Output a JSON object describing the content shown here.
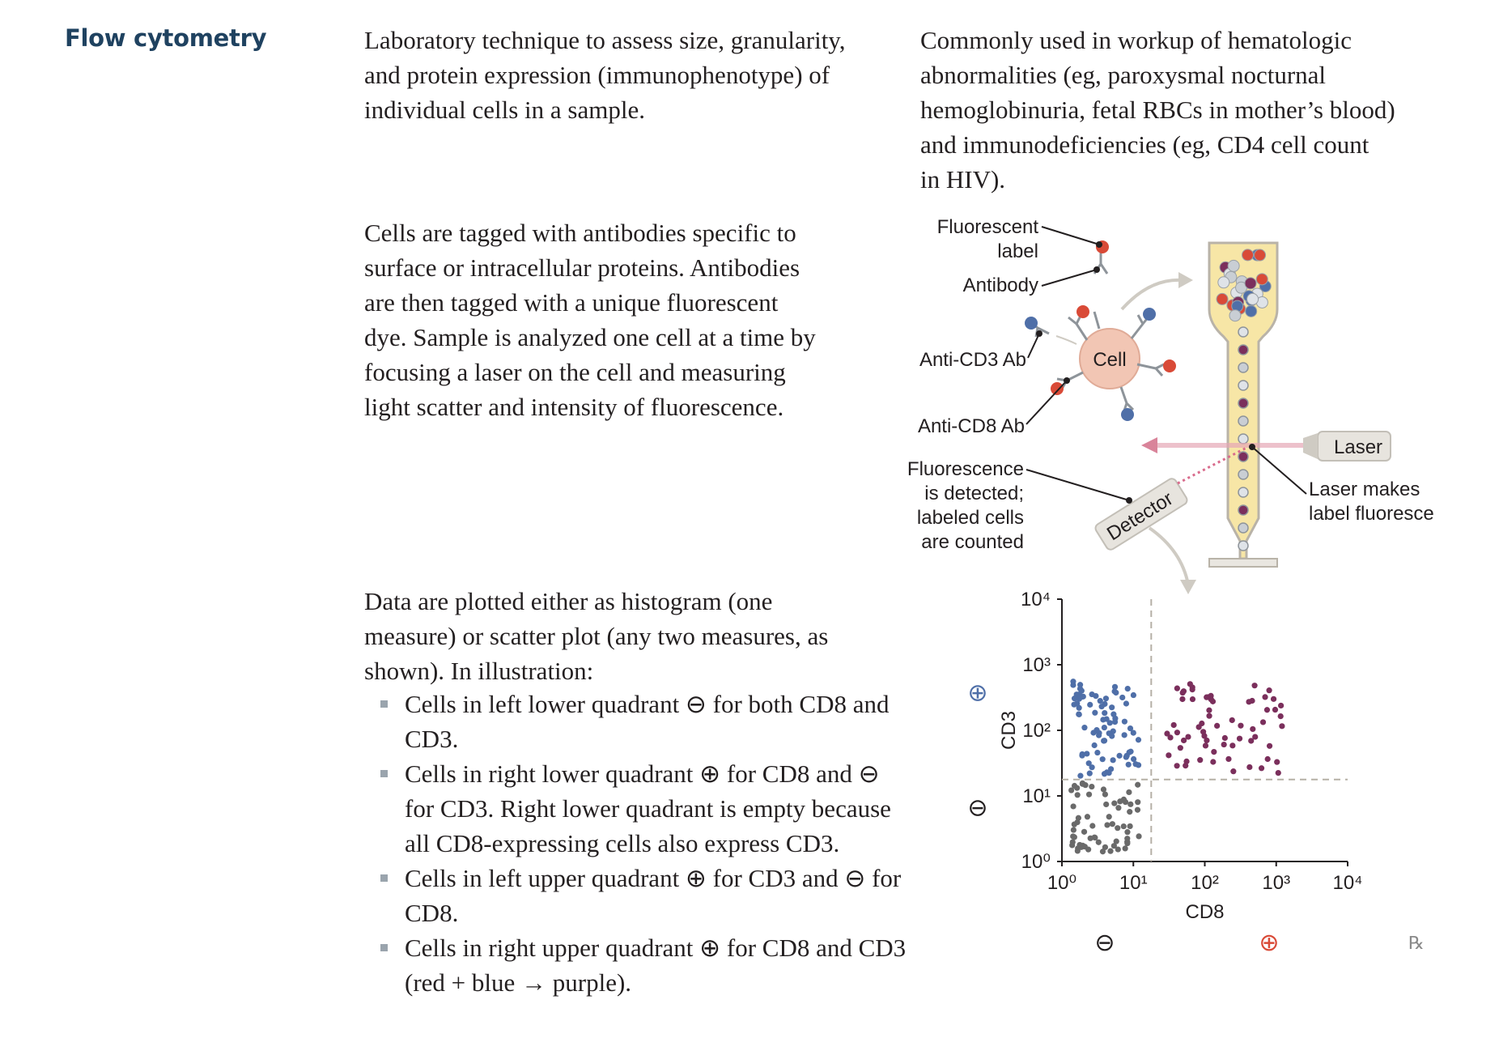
{
  "heading": "Flow cytometry",
  "intro": {
    "left": [
      "Laboratory technique to assess size, granularity,",
      "and protein expression (immunophenotype) of",
      "individual cells in a sample."
    ],
    "right": [
      "Commonly used in workup of hematologic",
      "abnormalities (eg, paroxysmal nocturnal",
      "hemoglobinuria, fetal RBCs in mother’s blood)",
      "and immunodeficiencies (eg, CD4 cell count",
      "in HIV)."
    ]
  },
  "method": [
    "Cells are tagged with antibodies specific to",
    "surface or intracellular proteins. Antibodies",
    "are then tagged with a unique fluorescent",
    "dye. Sample is analyzed one cell at a time by",
    "focusing a laser on the cell and measuring",
    "light scatter and intensity of fluorescence."
  ],
  "plotting": [
    "Data are plotted either as histogram (one",
    "measure) or scatter plot (any two measures, as",
    "shown). In illustration:"
  ],
  "bullets": [
    "Cells in left lower quadrant ⊖ for both CD8 and CD3.",
    "Cells in right lower quadrant ⊕ for CD8 and ⊖ for CD3. Right lower quadrant is empty because all CD8-expressing cells also express CD3.",
    "Cells in left upper quadrant ⊕ for CD3 and ⊖ for CD8.",
    "Cells in right upper quadrant ⊕ for CD8 and CD3 (red + blue → purple)."
  ],
  "diagram": {
    "fluorescent_label": [
      "Fluorescent",
      "label"
    ],
    "antibody": "Antibody",
    "cell": "Cell",
    "anti_cd3": "Anti-CD3 Ab",
    "anti_cd8": "Anti-CD8 Ab",
    "laser": "Laser",
    "laser_note": [
      "Laser makes",
      "label fluoresce"
    ],
    "fluor_note": [
      "Fluorescence",
      "is detected;",
      "labeled cells",
      "are counted"
    ],
    "detector": "Detector",
    "colors": {
      "red": "#d94a37",
      "blue": "#4f6fa8",
      "purple": "#7b2f5c",
      "gray": "#666666",
      "stream": "#f7e6a6"
    }
  },
  "chart_data": {
    "type": "scatter",
    "xlabel": "CD8",
    "ylabel": "CD3",
    "x_ticks": [
      "10⁰",
      "10¹",
      "10²",
      "10³",
      "10⁴"
    ],
    "y_ticks": [
      "10⁰",
      "10¹",
      "10²",
      "10³",
      "10⁴"
    ],
    "xlim": [
      0,
      4
    ],
    "ylim": [
      0,
      4
    ],
    "log_scale": true,
    "quadrant_threshold": {
      "x": 1.25,
      "y": 1.25
    },
    "signs": {
      "y_plus": "⊕",
      "y_minus": "⊖",
      "x_minus": "⊖",
      "x_plus": "⊕"
    },
    "series": [
      {
        "color": "#4f6fa8",
        "x_range": [
          0.15,
          1.1
        ],
        "y_range": [
          1.3,
          2.75
        ],
        "count": 80
      },
      {
        "color": "#7b2f5c",
        "x_range": [
          1.45,
          3.1
        ],
        "y_range": [
          1.35,
          2.72
        ],
        "count": 65
      },
      {
        "color": "#6a6a6a",
        "x_range": [
          0.1,
          1.1
        ],
        "y_range": [
          0.15,
          1.2
        ],
        "count": 65
      }
    ],
    "logo": "℞"
  }
}
